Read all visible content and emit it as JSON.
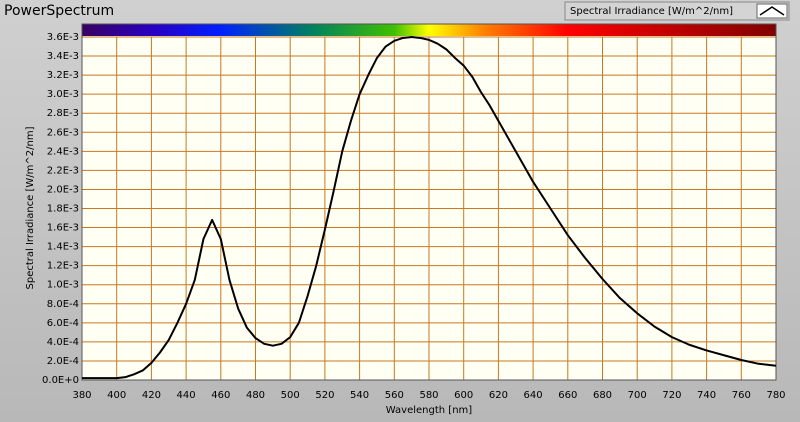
{
  "chart_data": {
    "type": "line",
    "title": "PowerSpectrum",
    "x_label": "Wavelength [nm]",
    "y_label": "Spectral Irradiance [W/m^2/nm]",
    "x": [
      380,
      390,
      400,
      405,
      410,
      415,
      420,
      425,
      430,
      435,
      440,
      445,
      450,
      455,
      460,
      465,
      470,
      475,
      480,
      485,
      490,
      495,
      500,
      505,
      510,
      515,
      520,
      525,
      530,
      535,
      540,
      545,
      550,
      555,
      560,
      565,
      570,
      575,
      580,
      585,
      590,
      595,
      600,
      605,
      610,
      615,
      620,
      630,
      640,
      650,
      660,
      670,
      680,
      690,
      700,
      710,
      720,
      730,
      740,
      750,
      760,
      770,
      780
    ],
    "series": [
      {
        "name": "Spectral Irradiance [W/m^2/nm]",
        "color": "#000000",
        "values": [
          2e-05,
          2e-05,
          2e-05,
          3e-05,
          6e-05,
          0.0001,
          0.00018,
          0.00029,
          0.00042,
          0.0006,
          0.0008,
          0.00105,
          0.00148,
          0.00168,
          0.00148,
          0.00105,
          0.00075,
          0.00055,
          0.00044,
          0.00038,
          0.00036,
          0.00038,
          0.00045,
          0.0006,
          0.00088,
          0.0012,
          0.00158,
          0.00198,
          0.0024,
          0.00272,
          0.003,
          0.0032,
          0.00338,
          0.0035,
          0.00356,
          0.00359,
          0.0036,
          0.00359,
          0.00357,
          0.00353,
          0.00347,
          0.00338,
          0.0033,
          0.00318,
          0.00302,
          0.00288,
          0.00272,
          0.0024,
          0.00208,
          0.0018,
          0.00152,
          0.00128,
          0.00106,
          0.00086,
          0.0007,
          0.00056,
          0.00045,
          0.00037,
          0.00031,
          0.00026,
          0.00021,
          0.00017,
          0.00015
        ]
      }
    ],
    "xlim": [
      380,
      780
    ],
    "xticks": [
      380,
      400,
      420,
      440,
      460,
      480,
      500,
      520,
      540,
      560,
      580,
      600,
      620,
      640,
      660,
      680,
      700,
      720,
      740,
      760,
      780
    ],
    "ylim": [
      0,
      0.0036
    ],
    "yticks": [
      {
        "value": 0,
        "label": "0.0E+0"
      },
      {
        "value": 0.0002,
        "label": "2.0E-4"
      },
      {
        "value": 0.0004,
        "label": "4.0E-4"
      },
      {
        "value": 0.0006,
        "label": "6.0E-4"
      },
      {
        "value": 0.0008,
        "label": "8.0E-4"
      },
      {
        "value": 0.001,
        "label": "1.0E-3"
      },
      {
        "value": 0.0012,
        "label": "1.2E-3"
      },
      {
        "value": 0.0014,
        "label": "1.4E-3"
      },
      {
        "value": 0.0016,
        "label": "1.6E-3"
      },
      {
        "value": 0.0018,
        "label": "1.8E-3"
      },
      {
        "value": 0.002,
        "label": "2.0E-3"
      },
      {
        "value": 0.0022,
        "label": "2.2E-3"
      },
      {
        "value": 0.0024,
        "label": "2.4E-3"
      },
      {
        "value": 0.0026,
        "label": "2.6E-3"
      },
      {
        "value": 0.0028,
        "label": "2.8E-3"
      },
      {
        "value": 0.003,
        "label": "3.0E-3"
      },
      {
        "value": 0.0032,
        "label": "3.2E-3"
      },
      {
        "value": 0.0034,
        "label": "3.4E-3"
      },
      {
        "value": 0.0036,
        "label": "3.6E-3"
      }
    ],
    "grid": true,
    "grid_color": "#c8781e"
  }
}
